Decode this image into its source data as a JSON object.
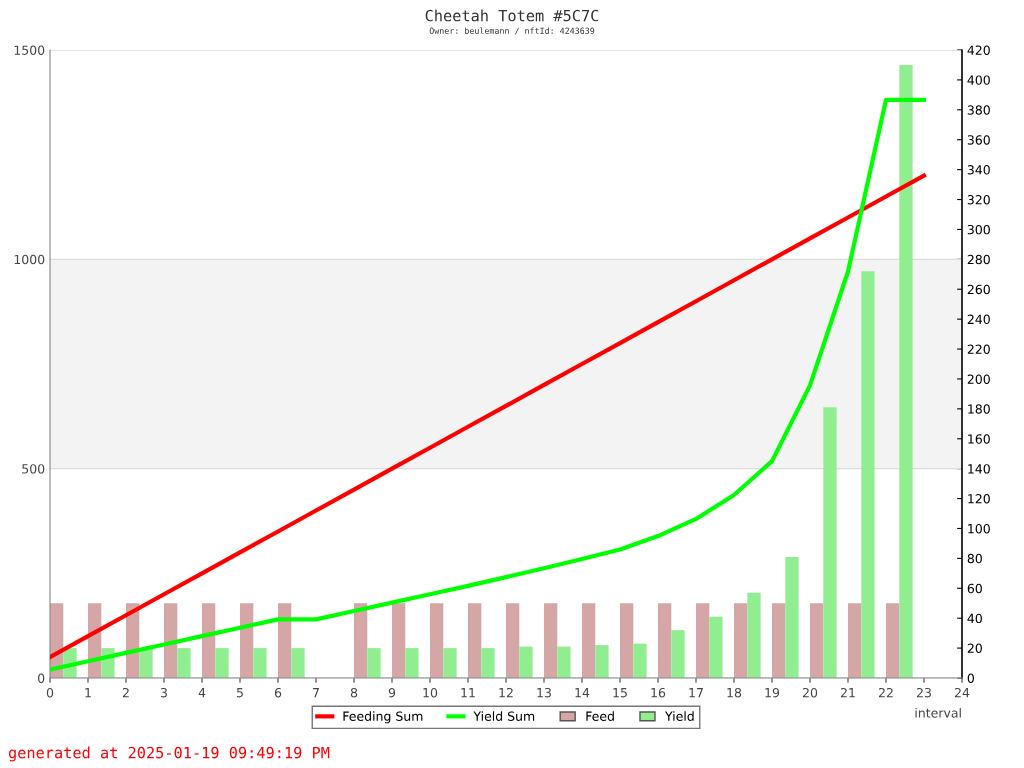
{
  "chart_data": {
    "type": "bar",
    "title": "Cheetah Totem #5C7C",
    "subtitle": "Owner: beulemann / nftId: 4243639",
    "xlabel": "interval",
    "x": [
      0,
      1,
      2,
      3,
      4,
      5,
      6,
      7,
      8,
      9,
      10,
      11,
      12,
      13,
      14,
      15,
      16,
      17,
      18,
      19,
      20,
      21,
      22,
      23
    ],
    "series": [
      {
        "name": "Feeding Sum",
        "type": "line",
        "color": "#ff0000",
        "values": [
          50,
          100,
          150,
          200,
          250,
          300,
          350,
          400,
          450,
          500,
          550,
          600,
          650,
          700,
          750,
          800,
          850,
          900,
          950,
          1000,
          1050,
          1100,
          1150,
          1200
        ]
      },
      {
        "name": "Yield Sum",
        "type": "line",
        "color": "#00ff00",
        "values": [
          20,
          40,
          60,
          80,
          100,
          120,
          140,
          140,
          160,
          180,
          200,
          220,
          241,
          262,
          284,
          307,
          339,
          380,
          437,
          518,
          699,
          971,
          1381,
          1381
        ]
      },
      {
        "name": "Feed",
        "axis": "y2",
        "color": "#d4a6a6",
        "values": [
          50,
          50,
          50,
          50,
          50,
          50,
          50,
          null,
          50,
          50,
          50,
          50,
          50,
          50,
          50,
          50,
          50,
          50,
          50,
          50,
          50,
          50,
          50,
          null
        ]
      },
      {
        "name": "Yield",
        "axis": "y2",
        "color": "#90ee90",
        "values": [
          20,
          20,
          20,
          20,
          20,
          20,
          20,
          null,
          20,
          20,
          20,
          20,
          21,
          21,
          22,
          23,
          32,
          41,
          57,
          81,
          181,
          272,
          410,
          null
        ]
      }
    ],
    "xlim": [
      0,
      24
    ],
    "xticks": [
      0,
      1,
      2,
      3,
      4,
      5,
      6,
      7,
      8,
      9,
      10,
      11,
      12,
      13,
      14,
      15,
      16,
      17,
      18,
      19,
      20,
      21,
      22,
      23,
      24
    ],
    "ylim": [
      0,
      1500
    ],
    "yticks": [
      0,
      500,
      1000,
      1500
    ],
    "y2lim": [
      0,
      420
    ],
    "y2ticks": [
      0,
      20,
      40,
      60,
      80,
      100,
      120,
      140,
      160,
      180,
      200,
      220,
      240,
      260,
      280,
      300,
      320,
      340,
      360,
      380,
      400,
      420
    ],
    "bands": [
      {
        "axis": "y",
        "from": 500,
        "to": 1000,
        "color": "#f3f3f3"
      }
    ],
    "grid": "y",
    "legend": "bottom",
    "annotations": [
      "generated at 2025-01-19 09:49:19 PM"
    ]
  }
}
